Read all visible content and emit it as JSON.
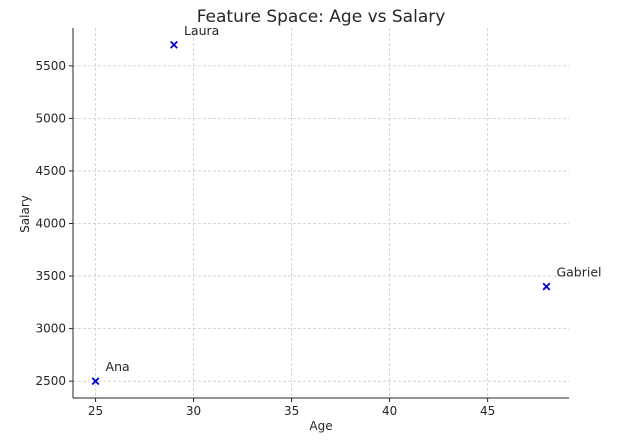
{
  "chart_data": {
    "type": "scatter",
    "title": "Feature Space: Age vs Salary",
    "xlabel": "Age",
    "ylabel": "Salary",
    "xlim": [
      23.85,
      49.15
    ],
    "ylim": [
      2340,
      5860
    ],
    "xticks": [
      25,
      30,
      35,
      40,
      45
    ],
    "yticks": [
      2500,
      3000,
      3500,
      4000,
      4500,
      5000,
      5500
    ],
    "grid": true,
    "marker": "x",
    "marker_color": "#0000cc",
    "points": [
      {
        "label": "Ana",
        "x": 25,
        "y": 2500
      },
      {
        "label": "Laura",
        "x": 29,
        "y": 5700
      },
      {
        "label": "Gabriel",
        "x": 48,
        "y": 3400
      }
    ]
  }
}
